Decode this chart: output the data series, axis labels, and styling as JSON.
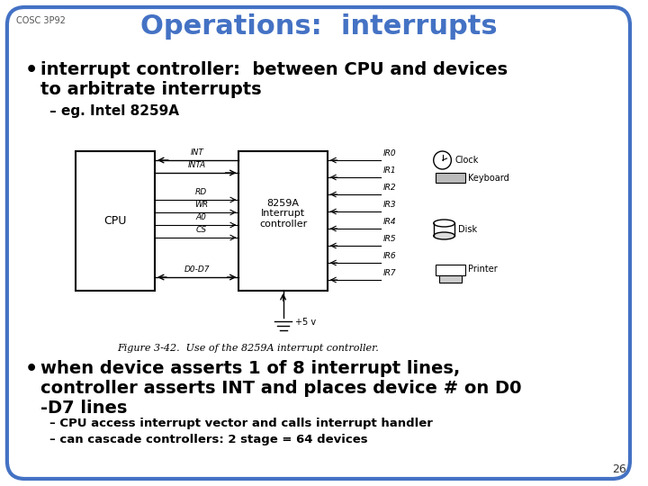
{
  "background_color": "#ffffff",
  "border_color": "#4472C4",
  "slide_number": "26",
  "course_label": "COSC 3P92",
  "title": "Operations:  interrupts",
  "title_color": "#4472C4",
  "bullet1": "interrupt controller:  between CPU and devices\nto arbitrate interrupts",
  "bullet1_color": "#000000",
  "sub_bullet1": "eg. Intel 8259A",
  "sub_bullet1_color": "#000000",
  "figure_caption": "Figure 3-42.  Use of the 8259A interrupt controller.",
  "bullet2_line1": "when device asserts 1 of 8 interrupt lines,",
  "bullet2_line2": "controller asserts INT and places device # on D0",
  "bullet2_line3": "-D7 lines",
  "bullet2_color": "#000000",
  "sub_bullet2a": "CPU access interrupt vector and calls interrupt handler",
  "sub_bullet2b": "can cascade controllers: 2 stage = 64 devices",
  "sub_bullet2_color": "#000000",
  "cpu_label": "CPU",
  "ic_label": "8259A\nInterrupt\ncontroller",
  "signals_left": [
    "INT",
    "INTA",
    "RD",
    "WR",
    "A0",
    "CS",
    "D0-D7"
  ],
  "ir_labels": [
    "IR0",
    "IR1",
    "IR2",
    "IR3",
    "IR4",
    "IR5",
    "IR6",
    "IR7"
  ],
  "device_labels": [
    "Clock",
    "Keyboard",
    "Disk",
    "Printer"
  ],
  "v5_label": "+5 v"
}
